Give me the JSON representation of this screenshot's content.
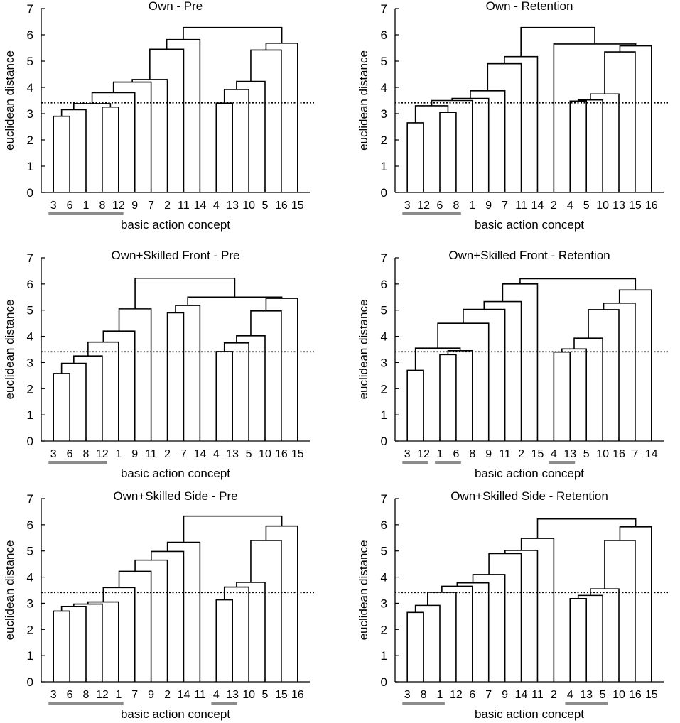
{
  "chart_data": [
    {
      "type": "dendrogram",
      "title": "Own - Pre",
      "xlabel": "basic action concept",
      "ylabel": "euclidean distance",
      "ylim": [
        0,
        7
      ],
      "yticks": [
        "0",
        "1",
        "2",
        "3",
        "4",
        "5",
        "6",
        "7"
      ],
      "threshold": 3.41,
      "leaf_order": [
        "3",
        "6",
        "1",
        "8",
        "12",
        "9",
        "7",
        "2",
        "11",
        "14",
        "4",
        "13",
        "10",
        "5",
        "16",
        "15"
      ],
      "merges": [
        {
          "a": 0,
          "b": 1,
          "height": 2.9
        },
        {
          "a": 3,
          "b": 4,
          "height": 3.25
        },
        {
          "a": 16,
          "b": 2,
          "height": 3.15
        },
        {
          "a": 18,
          "b": 17,
          "height": 3.38
        },
        {
          "a": 19,
          "b": 5,
          "height": 3.8
        },
        {
          "a": 20,
          "b": 6,
          "height": 4.2
        },
        {
          "a": 21,
          "b": 7,
          "height": 4.3
        },
        {
          "a": 22,
          "b": 8,
          "height": 5.45
        },
        {
          "a": 23,
          "b": 9,
          "height": 5.82
        },
        {
          "a": 10,
          "b": 11,
          "height": 3.4
        },
        {
          "a": 25,
          "b": 12,
          "height": 3.92
        },
        {
          "a": 26,
          "b": 13,
          "height": 4.23
        },
        {
          "a": 27,
          "b": 14,
          "height": 5.42
        },
        {
          "a": 28,
          "b": 15,
          "height": 5.68
        },
        {
          "a": 24,
          "b": 29,
          "height": 6.28
        }
      ],
      "highlight_groups": [
        [
          "3",
          "12"
        ]
      ]
    },
    {
      "type": "dendrogram",
      "title": "Own - Retention",
      "xlabel": "basic action concept",
      "ylabel": "euclidean distance",
      "ylim": [
        0,
        7
      ],
      "yticks": [
        "0",
        "1",
        "2",
        "3",
        "4",
        "5",
        "6",
        "7"
      ],
      "threshold": 3.41,
      "leaf_order": [
        "3",
        "12",
        "6",
        "8",
        "1",
        "9",
        "7",
        "11",
        "14",
        "2",
        "4",
        "5",
        "10",
        "13",
        "15",
        "16"
      ],
      "merges": [
        {
          "a": 0,
          "b": 1,
          "height": 2.65
        },
        {
          "a": 2,
          "b": 3,
          "height": 3.05
        },
        {
          "a": 16,
          "b": 17,
          "height": 3.3
        },
        {
          "a": 18,
          "b": 4,
          "height": 3.5
        },
        {
          "a": 19,
          "b": 5,
          "height": 3.58
        },
        {
          "a": 20,
          "b": 6,
          "height": 3.87
        },
        {
          "a": 21,
          "b": 7,
          "height": 4.9
        },
        {
          "a": 22,
          "b": 8,
          "height": 5.17
        },
        {
          "a": 10,
          "b": 11,
          "height": 3.48
        },
        {
          "a": 24,
          "b": 12,
          "height": 3.52
        },
        {
          "a": 25,
          "b": 13,
          "height": 3.75
        },
        {
          "a": 26,
          "b": 14,
          "height": 5.35
        },
        {
          "a": 27,
          "b": 15,
          "height": 5.58
        },
        {
          "a": 9,
          "b": 28,
          "height": 5.65
        },
        {
          "a": 23,
          "b": 29,
          "height": 6.28
        }
      ],
      "highlight_groups": [
        [
          "3",
          "8"
        ]
      ]
    },
    {
      "type": "dendrogram",
      "title": "Own+Skilled Front - Pre",
      "xlabel": "basic action concept",
      "ylabel": "euclidean distance",
      "ylim": [
        0,
        7
      ],
      "yticks": [
        "0",
        "1",
        "2",
        "3",
        "4",
        "5",
        "6",
        "7"
      ],
      "threshold": 3.41,
      "leaf_order": [
        "3",
        "6",
        "8",
        "12",
        "1",
        "9",
        "11",
        "2",
        "7",
        "14",
        "4",
        "13",
        "5",
        "10",
        "16",
        "15"
      ],
      "merges": [
        {
          "a": 0,
          "b": 1,
          "height": 2.58
        },
        {
          "a": 16,
          "b": 2,
          "height": 2.97
        },
        {
          "a": 17,
          "b": 3,
          "height": 3.25
        },
        {
          "a": 18,
          "b": 4,
          "height": 3.78
        },
        {
          "a": 19,
          "b": 5,
          "height": 4.2
        },
        {
          "a": 20,
          "b": 6,
          "height": 5.05
        },
        {
          "a": 7,
          "b": 8,
          "height": 4.9
        },
        {
          "a": 22,
          "b": 9,
          "height": 5.18
        },
        {
          "a": 10,
          "b": 11,
          "height": 3.42
        },
        {
          "a": 24,
          "b": 12,
          "height": 3.75
        },
        {
          "a": 25,
          "b": 13,
          "height": 4.02
        },
        {
          "a": 26,
          "b": 14,
          "height": 4.97
        },
        {
          "a": 27,
          "b": 15,
          "height": 5.45
        },
        {
          "a": 23,
          "b": 28,
          "height": 5.5
        },
        {
          "a": 21,
          "b": 29,
          "height": 6.22
        }
      ],
      "highlight_groups": [
        [
          "3",
          "12"
        ]
      ]
    },
    {
      "type": "dendrogram",
      "title": "Own+Skilled Front - Retention",
      "xlabel": "basic action concept",
      "ylabel": "euclidean distance",
      "ylim": [
        0,
        7
      ],
      "yticks": [
        "0",
        "1",
        "2",
        "3",
        "4",
        "5",
        "6",
        "7"
      ],
      "threshold": 3.41,
      "leaf_order": [
        "3",
        "12",
        "1",
        "6",
        "8",
        "9",
        "11",
        "2",
        "15",
        "4",
        "13",
        "5",
        "10",
        "16",
        "7",
        "14"
      ],
      "merges": [
        {
          "a": 0,
          "b": 1,
          "height": 2.7
        },
        {
          "a": 2,
          "b": 3,
          "height": 3.3
        },
        {
          "a": 17,
          "b": 4,
          "height": 3.45
        },
        {
          "a": 16,
          "b": 18,
          "height": 3.55
        },
        {
          "a": 19,
          "b": 5,
          "height": 4.5
        },
        {
          "a": 20,
          "b": 6,
          "height": 5.03
        },
        {
          "a": 21,
          "b": 7,
          "height": 5.33
        },
        {
          "a": 22,
          "b": 8,
          "height": 6.0
        },
        {
          "a": 9,
          "b": 10,
          "height": 3.4
        },
        {
          "a": 24,
          "b": 11,
          "height": 3.52
        },
        {
          "a": 25,
          "b": 12,
          "height": 3.93
        },
        {
          "a": 26,
          "b": 13,
          "height": 5.02
        },
        {
          "a": 27,
          "b": 14,
          "height": 5.27
        },
        {
          "a": 28,
          "b": 15,
          "height": 5.77
        },
        {
          "a": 23,
          "b": 29,
          "height": 6.2
        }
      ],
      "highlight_groups": [
        [
          "3",
          "12"
        ],
        [
          "1",
          "6"
        ],
        [
          "4",
          "13"
        ]
      ]
    },
    {
      "type": "dendrogram",
      "title": "Own+Skilled Side - Pre",
      "xlabel": "basic action concept",
      "ylabel": "euclidean distance",
      "ylim": [
        0,
        7
      ],
      "yticks": [
        "0",
        "1",
        "2",
        "3",
        "4",
        "5",
        "6",
        "7"
      ],
      "threshold": 3.41,
      "leaf_order": [
        "3",
        "6",
        "8",
        "12",
        "1",
        "7",
        "9",
        "2",
        "14",
        "11",
        "4",
        "13",
        "10",
        "5",
        "15",
        "16"
      ],
      "merges": [
        {
          "a": 0,
          "b": 1,
          "height": 2.7
        },
        {
          "a": 16,
          "b": 2,
          "height": 2.88
        },
        {
          "a": 17,
          "b": 3,
          "height": 2.97
        },
        {
          "a": 18,
          "b": 4,
          "height": 3.05
        },
        {
          "a": 19,
          "b": 5,
          "height": 3.6
        },
        {
          "a": 20,
          "b": 6,
          "height": 4.22
        },
        {
          "a": 21,
          "b": 7,
          "height": 4.65
        },
        {
          "a": 22,
          "b": 8,
          "height": 4.98
        },
        {
          "a": 23,
          "b": 9,
          "height": 5.33
        },
        {
          "a": 10,
          "b": 11,
          "height": 3.13
        },
        {
          "a": 25,
          "b": 12,
          "height": 3.62
        },
        {
          "a": 26,
          "b": 13,
          "height": 3.8
        },
        {
          "a": 27,
          "b": 14,
          "height": 5.4
        },
        {
          "a": 28,
          "b": 15,
          "height": 5.95
        },
        {
          "a": 24,
          "b": 29,
          "height": 6.33
        }
      ],
      "highlight_groups": [
        [
          "3",
          "1"
        ],
        [
          "4",
          "13"
        ]
      ]
    },
    {
      "type": "dendrogram",
      "title": "Own+Skilled Side - Retention",
      "xlabel": "basic action concept",
      "ylabel": "euclidean distance",
      "ylim": [
        0,
        7
      ],
      "yticks": [
        "0",
        "1",
        "2",
        "3",
        "4",
        "5",
        "6",
        "7"
      ],
      "threshold": 3.41,
      "leaf_order": [
        "3",
        "8",
        "1",
        "12",
        "6",
        "7",
        "9",
        "14",
        "11",
        "2",
        "4",
        "13",
        "5",
        "10",
        "16",
        "15"
      ],
      "merges": [
        {
          "a": 0,
          "b": 1,
          "height": 2.65
        },
        {
          "a": 16,
          "b": 2,
          "height": 2.92
        },
        {
          "a": 17,
          "b": 3,
          "height": 3.42
        },
        {
          "a": 18,
          "b": 4,
          "height": 3.65
        },
        {
          "a": 19,
          "b": 5,
          "height": 3.78
        },
        {
          "a": 20,
          "b": 6,
          "height": 4.1
        },
        {
          "a": 21,
          "b": 7,
          "height": 4.9
        },
        {
          "a": 22,
          "b": 8,
          "height": 5.02
        },
        {
          "a": 23,
          "b": 9,
          "height": 5.48
        },
        {
          "a": 10,
          "b": 11,
          "height": 3.18
        },
        {
          "a": 25,
          "b": 12,
          "height": 3.3
        },
        {
          "a": 26,
          "b": 13,
          "height": 3.55
        },
        {
          "a": 27,
          "b": 14,
          "height": 5.4
        },
        {
          "a": 28,
          "b": 15,
          "height": 5.92
        },
        {
          "a": 24,
          "b": 29,
          "height": 6.22
        }
      ],
      "highlight_groups": [
        [
          "3",
          "1"
        ],
        [
          "4",
          "5"
        ]
      ]
    }
  ]
}
